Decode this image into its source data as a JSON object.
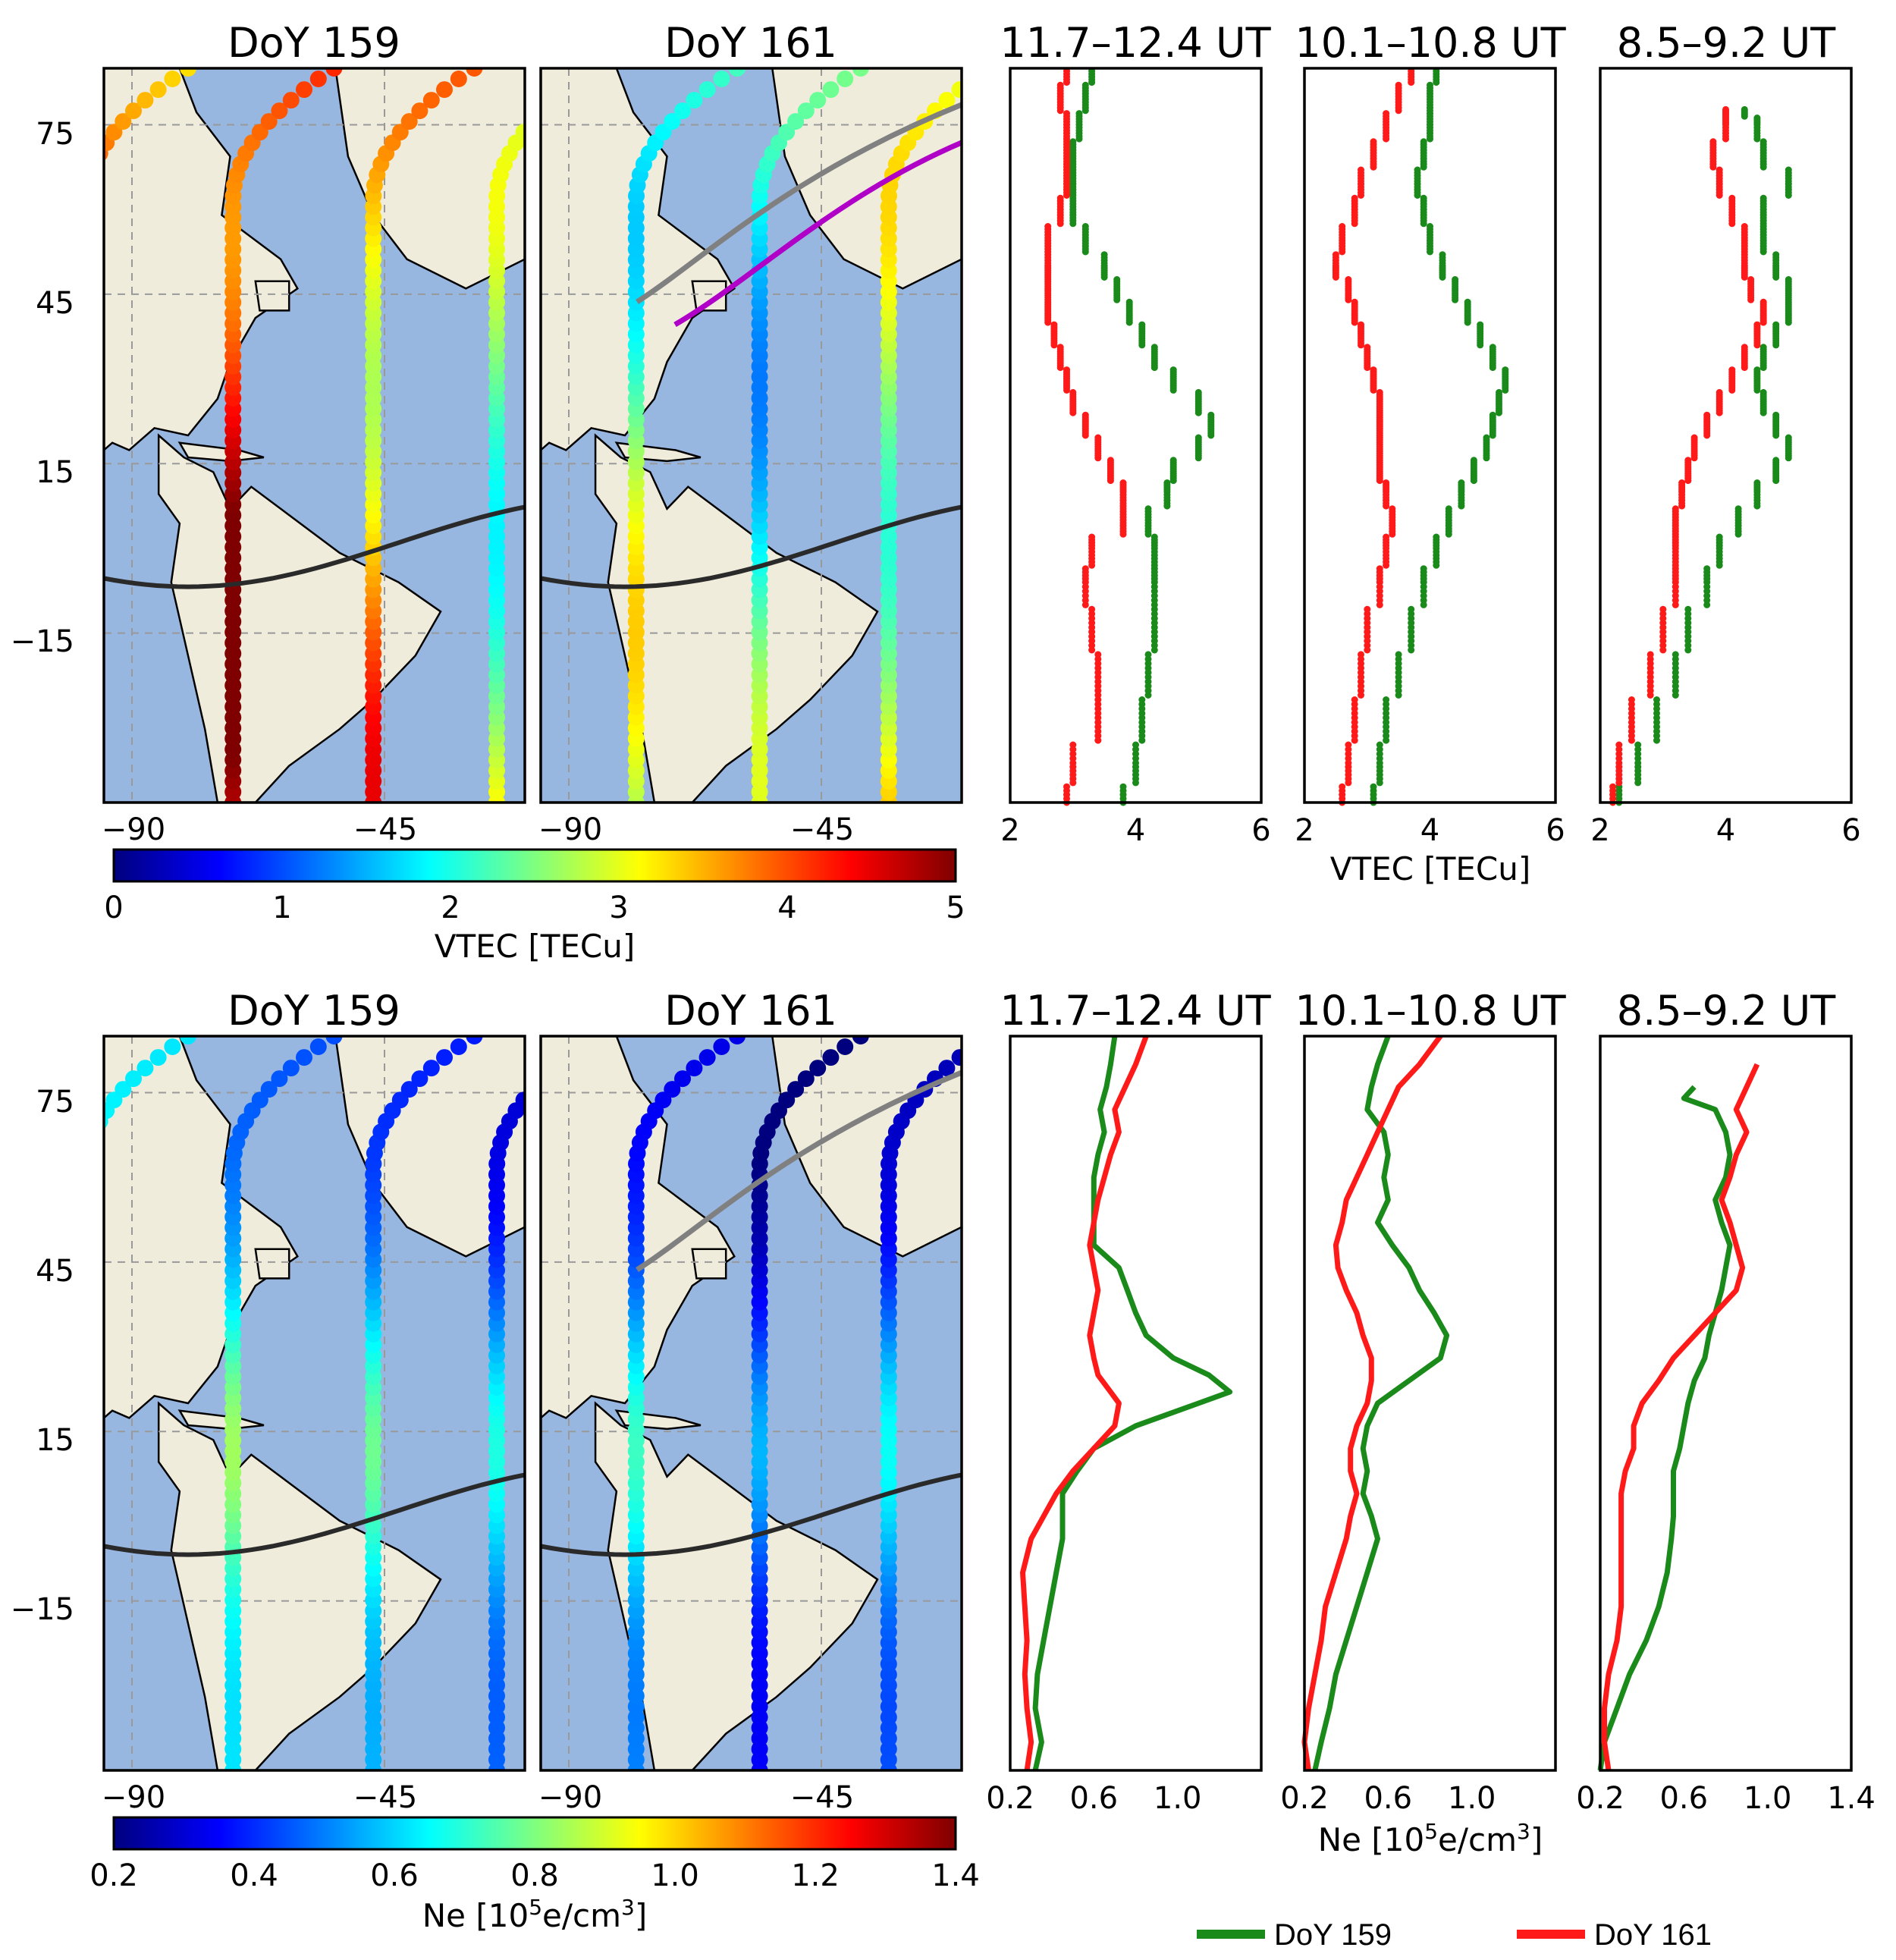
{
  "figure": {
    "legend": [
      {
        "label": "DoY 159",
        "color": "#1a8a1a"
      },
      {
        "label": "DoY 161",
        "color": "#ff1a1a"
      }
    ],
    "jet_colors": [
      "#00007f",
      "#0000ff",
      "#007fff",
      "#00ffff",
      "#7fff7f",
      "#ffff00",
      "#ff7f00",
      "#ff0000",
      "#7f0000"
    ],
    "land_color": "#efecdc",
    "ocean_color": "#97b6e0"
  },
  "chart_data": [
    {
      "type": "scatter",
      "panel": "map",
      "title": "DoY 159",
      "xticks": [
        "−90",
        "−45"
      ],
      "yticks": [
        "75",
        "45",
        "15",
        "−15"
      ],
      "lon_range": [
        -95,
        -20
      ],
      "lat_range": [
        -45,
        85
      ],
      "track_longitudes": [
        -72,
        -47,
        -25,
        -98
      ],
      "colored_quantity": "VTEC"
    },
    {
      "type": "scatter",
      "panel": "map",
      "title": "DoY 161",
      "xticks": [
        "−90",
        "−45"
      ],
      "lon_range": [
        -95,
        -20
      ],
      "lat_range": [
        -45,
        85
      ],
      "track_longitudes": [
        -78,
        -56,
        -33
      ],
      "colored_quantity": "VTEC"
    },
    {
      "type": "line",
      "panel": "profile",
      "title": "11.7–12.4 UT",
      "xlim": [
        2,
        6
      ],
      "ylim": [
        -45,
        85
      ],
      "xticks": [
        "2",
        "4",
        "6"
      ],
      "series": [
        {
          "name": "DoY 159",
          "lat": [
            -45,
            -38,
            -30,
            -22,
            -14,
            -6,
            0,
            5,
            10,
            14,
            18,
            22,
            26,
            30,
            34,
            38,
            42,
            46,
            50,
            55,
            60,
            65,
            70,
            75,
            80,
            85
          ],
          "values": [
            3.8,
            4.0,
            4.1,
            4.2,
            4.3,
            4.3,
            4.3,
            4.2,
            4.5,
            4.6,
            5.0,
            5.2,
            5.0,
            4.6,
            4.3,
            4.1,
            3.9,
            3.7,
            3.5,
            3.2,
            3.0,
            3.0,
            3.0,
            3.1,
            3.2,
            3.3
          ]
        },
        {
          "name": "DoY 161",
          "lat": [
            -45,
            -38,
            -30,
            -22,
            -14,
            -6,
            0,
            5,
            10,
            14,
            18,
            22,
            26,
            30,
            34,
            38,
            42,
            46,
            50,
            55,
            60,
            65,
            70,
            75,
            80,
            85
          ],
          "values": [
            2.9,
            3.0,
            3.4,
            3.4,
            3.3,
            3.2,
            3.3,
            3.8,
            3.8,
            3.6,
            3.4,
            3.2,
            3.0,
            2.9,
            2.8,
            2.7,
            2.6,
            2.6,
            2.6,
            2.6,
            2.8,
            2.9,
            2.9,
            2.9,
            2.8,
            2.9
          ]
        }
      ]
    },
    {
      "type": "line",
      "panel": "profile",
      "title": "10.1–10.8 UT",
      "xlim": [
        2,
        6
      ],
      "ylim": [
        -45,
        85
      ],
      "xticks": [
        "2",
        "4",
        "6"
      ],
      "xlabel": "VTEC [TECu]",
      "series": [
        {
          "name": "DoY 159",
          "lat": [
            -45,
            -38,
            -30,
            -22,
            -14,
            -6,
            0,
            5,
            10,
            14,
            18,
            22,
            26,
            30,
            34,
            38,
            42,
            46,
            50,
            55,
            60,
            65,
            70,
            75,
            80,
            85
          ],
          "values": [
            3.1,
            3.2,
            3.3,
            3.5,
            3.7,
            3.9,
            4.1,
            4.3,
            4.5,
            4.7,
            4.9,
            5.0,
            5.1,
            5.2,
            5.0,
            4.8,
            4.6,
            4.4,
            4.2,
            4.0,
            3.9,
            3.8,
            3.9,
            4.0,
            4.0,
            4.1
          ]
        },
        {
          "name": "DoY 161",
          "lat": [
            -45,
            -38,
            -30,
            -22,
            -14,
            -6,
            0,
            5,
            10,
            14,
            18,
            22,
            26,
            30,
            34,
            38,
            42,
            46,
            50,
            55,
            60,
            65,
            70,
            75,
            80,
            85
          ],
          "values": [
            2.6,
            2.7,
            2.8,
            2.9,
            3.0,
            3.2,
            3.3,
            3.4,
            3.3,
            3.2,
            3.2,
            3.2,
            3.2,
            3.1,
            3.0,
            2.9,
            2.8,
            2.7,
            2.5,
            2.6,
            2.8,
            2.9,
            3.1,
            3.3,
            3.5,
            3.7
          ]
        }
      ]
    },
    {
      "type": "line",
      "panel": "profile",
      "title": "8.5–9.2 UT",
      "xlim": [
        2,
        6
      ],
      "ylim": [
        -45,
        85
      ],
      "xticks": [
        "2",
        "4",
        "6"
      ],
      "series": [
        {
          "name": "DoY 159",
          "lat": [
            -45,
            -38,
            -30,
            -22,
            -14,
            -6,
            0,
            5,
            10,
            14,
            18,
            22,
            26,
            30,
            34,
            38,
            42,
            46,
            50,
            55,
            60,
            65,
            70,
            75,
            78
          ],
          "values": [
            2.3,
            2.6,
            2.9,
            3.2,
            3.4,
            3.7,
            3.9,
            4.2,
            4.5,
            4.8,
            5.0,
            4.8,
            4.6,
            4.5,
            4.6,
            4.8,
            5.0,
            5.0,
            4.8,
            4.6,
            4.6,
            5.0,
            4.6,
            4.5,
            4.3
          ]
        },
        {
          "name": "DoY 161",
          "lat": [
            -45,
            -38,
            -30,
            -22,
            -14,
            -6,
            0,
            5,
            10,
            14,
            18,
            22,
            26,
            30,
            34,
            38,
            42,
            46,
            50,
            55,
            60,
            65,
            70,
            75,
            78
          ],
          "values": [
            2.2,
            2.3,
            2.5,
            2.8,
            3.0,
            3.2,
            3.2,
            3.2,
            3.3,
            3.4,
            3.5,
            3.7,
            3.9,
            4.1,
            4.3,
            4.5,
            4.6,
            4.4,
            4.3,
            4.3,
            4.1,
            3.9,
            3.8,
            4.0,
            4.0
          ]
        }
      ]
    },
    {
      "type": "scatter",
      "panel": "map",
      "title": "DoY 159",
      "xticks": [
        "−90",
        "−45"
      ],
      "yticks": [
        "75",
        "45",
        "15",
        "−15"
      ],
      "lon_range": [
        -95,
        -20
      ],
      "lat_range": [
        -45,
        85
      ],
      "track_longitudes": [
        -72,
        -47,
        -25,
        -98
      ],
      "colored_quantity": "Ne"
    },
    {
      "type": "scatter",
      "panel": "map",
      "title": "DoY 161",
      "xticks": [
        "−90",
        "−45"
      ],
      "lon_range": [
        -95,
        -20
      ],
      "lat_range": [
        -45,
        85
      ],
      "track_longitudes": [
        -78,
        -56,
        -33
      ],
      "colored_quantity": "Ne"
    },
    {
      "type": "line",
      "panel": "profile",
      "title": "11.7–12.4 UT",
      "xlim": [
        0.2,
        1.4
      ],
      "ylim": [
        -45,
        85
      ],
      "xticks": [
        "0.2",
        "0.6",
        "1.0"
      ],
      "series": [
        {
          "name": "DoY 159",
          "lat": [
            -45,
            -40,
            -34,
            -28,
            -22,
            -16,
            -10,
            -4,
            0,
            4,
            8,
            12,
            16,
            20,
            22,
            25,
            28,
            32,
            36,
            40,
            44,
            48,
            52,
            56,
            60,
            64,
            68,
            72,
            76,
            80,
            85
          ],
          "values": [
            0.32,
            0.35,
            0.32,
            0.33,
            0.36,
            0.39,
            0.42,
            0.45,
            0.45,
            0.45,
            0.52,
            0.6,
            0.8,
            1.1,
            1.25,
            1.15,
            0.98,
            0.85,
            0.8,
            0.76,
            0.72,
            0.6,
            0.6,
            0.6,
            0.6,
            0.62,
            0.65,
            0.63,
            0.66,
            0.68,
            0.7
          ]
        },
        {
          "name": "DoY 161",
          "lat": [
            -45,
            -40,
            -34,
            -28,
            -22,
            -16,
            -10,
            -4,
            0,
            4,
            8,
            12,
            16,
            20,
            22,
            25,
            28,
            32,
            36,
            40,
            44,
            48,
            52,
            56,
            60,
            64,
            68,
            72,
            76,
            80,
            85
          ],
          "values": [
            0.28,
            0.3,
            0.28,
            0.27,
            0.28,
            0.27,
            0.26,
            0.3,
            0.36,
            0.42,
            0.5,
            0.6,
            0.7,
            0.72,
            0.68,
            0.62,
            0.6,
            0.58,
            0.6,
            0.62,
            0.6,
            0.58,
            0.6,
            0.62,
            0.65,
            0.68,
            0.72,
            0.7,
            0.75,
            0.8,
            0.85
          ]
        }
      ]
    },
    {
      "type": "line",
      "panel": "profile",
      "title": "10.1–10.8 UT",
      "xlim": [
        0.2,
        1.4
      ],
      "ylim": [
        -45,
        85
      ],
      "xticks": [
        "0.2",
        "0.6",
        "1.0"
      ],
      "xlabel": "Ne [10⁵e/cm³]",
      "series": [
        {
          "name": "DoY 159",
          "lat": [
            -45,
            -40,
            -34,
            -28,
            -22,
            -16,
            -10,
            -4,
            0,
            4,
            8,
            12,
            16,
            20,
            24,
            28,
            32,
            36,
            40,
            44,
            48,
            52,
            56,
            60,
            64,
            68,
            72,
            76,
            80,
            85
          ],
          "values": [
            0.25,
            0.28,
            0.32,
            0.35,
            0.4,
            0.45,
            0.5,
            0.55,
            0.52,
            0.48,
            0.5,
            0.48,
            0.5,
            0.55,
            0.7,
            0.85,
            0.88,
            0.82,
            0.75,
            0.7,
            0.62,
            0.55,
            0.6,
            0.58,
            0.6,
            0.58,
            0.5,
            0.52,
            0.55,
            0.6
          ]
        },
        {
          "name": "DoY 161",
          "lat": [
            -45,
            -40,
            -34,
            -28,
            -22,
            -16,
            -10,
            -4,
            0,
            4,
            8,
            12,
            16,
            20,
            24,
            28,
            32,
            36,
            40,
            44,
            48,
            52,
            56,
            60,
            64,
            68,
            72,
            76,
            80,
            85
          ],
          "values": [
            0.22,
            0.2,
            0.22,
            0.25,
            0.28,
            0.3,
            0.35,
            0.4,
            0.42,
            0.45,
            0.42,
            0.42,
            0.45,
            0.5,
            0.52,
            0.52,
            0.48,
            0.45,
            0.4,
            0.36,
            0.35,
            0.38,
            0.4,
            0.45,
            0.5,
            0.55,
            0.6,
            0.65,
            0.75,
            0.85
          ]
        }
      ]
    },
    {
      "type": "line",
      "panel": "profile",
      "title": "8.5–9.2 UT",
      "xlim": [
        0.2,
        1.4
      ],
      "ylim": [
        -45,
        85
      ],
      "xticks": [
        "0.2",
        "0.6",
        "1.0",
        "1.4"
      ],
      "series": [
        {
          "name": "DoY 159",
          "lat": [
            -45,
            -40,
            -34,
            -28,
            -22,
            -16,
            -10,
            -4,
            0,
            4,
            8,
            12,
            16,
            20,
            24,
            28,
            32,
            36,
            40,
            44,
            48,
            52,
            56,
            60,
            64,
            68,
            72,
            74,
            76
          ],
          "values": [
            0.2,
            0.22,
            0.28,
            0.34,
            0.42,
            0.48,
            0.52,
            0.54,
            0.55,
            0.55,
            0.55,
            0.58,
            0.6,
            0.62,
            0.65,
            0.7,
            0.72,
            0.75,
            0.78,
            0.8,
            0.82,
            0.78,
            0.75,
            0.8,
            0.82,
            0.8,
            0.75,
            0.6,
            0.65
          ]
        },
        {
          "name": "DoY 161",
          "lat": [
            -45,
            -40,
            -34,
            -28,
            -22,
            -16,
            -10,
            -4,
            0,
            4,
            8,
            12,
            16,
            20,
            24,
            28,
            32,
            36,
            40,
            44,
            48,
            52,
            56,
            60,
            64,
            68,
            72,
            76,
            80
          ],
          "values": [
            0.24,
            0.22,
            0.22,
            0.24,
            0.28,
            0.3,
            0.3,
            0.3,
            0.3,
            0.3,
            0.32,
            0.36,
            0.36,
            0.4,
            0.48,
            0.55,
            0.65,
            0.75,
            0.85,
            0.88,
            0.85,
            0.82,
            0.78,
            0.82,
            0.85,
            0.9,
            0.85,
            0.9,
            0.95
          ]
        }
      ]
    }
  ],
  "colorbars": [
    {
      "label": "VTEC [TECu]",
      "ticks": [
        "0",
        "1",
        "2",
        "3",
        "4",
        "5"
      ]
    },
    {
      "label": "Ne [10⁵e/cm³]",
      "label_main": "Ne [10",
      "label_sup": "5",
      "label_mid": "e/cm",
      "label_sup2": "3",
      "label_end": "]",
      "ticks": [
        "0.2",
        "0.4",
        "0.6",
        "0.8",
        "1.0",
        "1.2",
        "1.4"
      ]
    }
  ],
  "profile_axis_labels": {
    "vtec": "VTEC [TECu]",
    "ne_main": "Ne [10",
    "ne_sup": "5",
    "ne_mid": "e/cm",
    "ne_sup2": "3",
    "ne_end": "]"
  }
}
